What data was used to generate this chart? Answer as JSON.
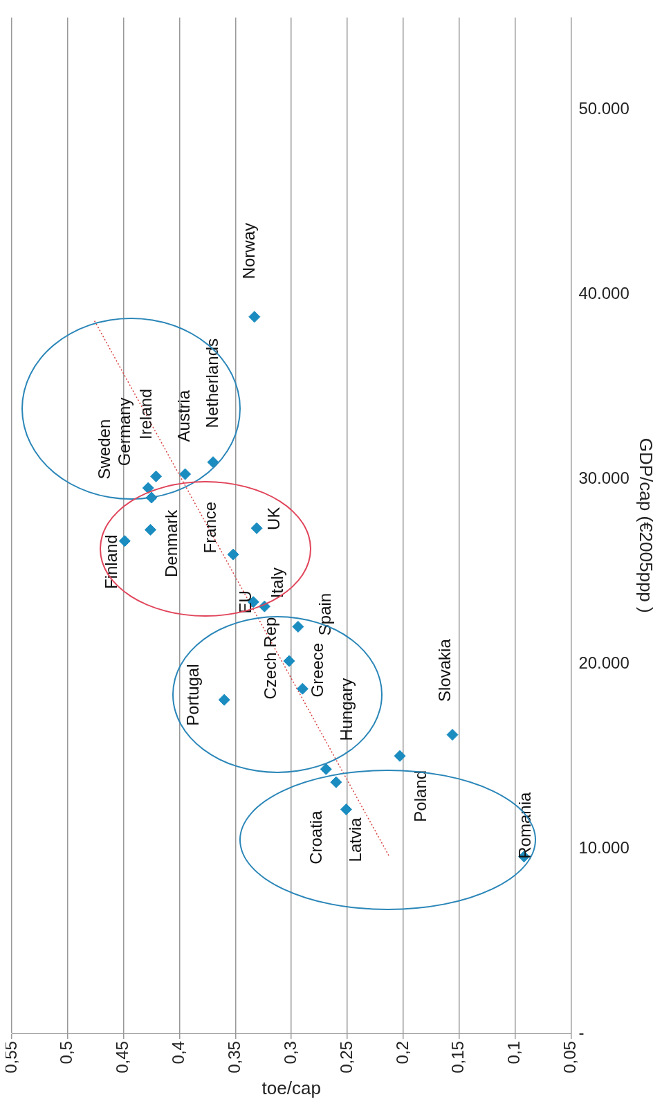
{
  "chart_data": {
    "type": "scatter",
    "xlabel": "toe/cap",
    "ylabel": "GDP/cap (€2005ppp )",
    "xlim": [
      0.55,
      0.05
    ],
    "xticks": [
      {
        "value": 0.05,
        "label": "0,05"
      },
      {
        "value": 0.1,
        "label": "0,1"
      },
      {
        "value": 0.15,
        "label": "0,15"
      },
      {
        "value": 0.2,
        "label": "0,2"
      },
      {
        "value": 0.25,
        "label": "0,25"
      },
      {
        "value": 0.3,
        "label": "0,3"
      },
      {
        "value": 0.35,
        "label": "0,35"
      },
      {
        "value": 0.4,
        "label": "0,4"
      },
      {
        "value": 0.45,
        "label": "0,45"
      },
      {
        "value": 0.5,
        "label": "0,5"
      },
      {
        "value": 0.55,
        "label": "0,55"
      }
    ],
    "ylim": [
      0,
      55000
    ],
    "yticks": [
      {
        "value": 0,
        "label": "-"
      },
      {
        "value": 10000,
        "label": "10.000"
      },
      {
        "value": 20000,
        "label": "20.000"
      },
      {
        "value": 30000,
        "label": "30.000"
      },
      {
        "value": 40000,
        "label": "40.000"
      },
      {
        "value": 50000,
        "label": "50.000"
      }
    ],
    "grid": "x",
    "legend": false,
    "marker": "diamond",
    "series": [
      {
        "color": "#1a8cc0",
        "x": [
          0.333,
          0.37,
          0.395,
          0.421,
          0.425,
          0.428,
          0.426,
          0.449,
          0.331,
          0.352,
          0.334,
          0.324,
          0.294,
          0.302,
          0.29,
          0.36,
          0.269,
          0.26,
          0.251,
          0.203,
          0.156,
          0.092
        ],
        "values": [
          38800,
          30930,
          30280,
          30160,
          29010,
          29530,
          27270,
          26660,
          27350,
          25930,
          23360,
          23120,
          22020,
          20160,
          18660,
          18060,
          14310,
          13600,
          12130,
          15020,
          16170,
          9570
        ]
      },
      {
        "type": "line",
        "marker": "none",
        "color": "#d94040",
        "line_style": "dotted",
        "x": [
          0.476,
          0.212
        ],
        "values": [
          38580,
          9530
        ]
      }
    ],
    "annotations": [
      {
        "text": "Norway",
        "x": 0.333,
        "y": 38800
      },
      {
        "text": "Netherlands",
        "x": 0.37,
        "y": 30930
      },
      {
        "text": "Austria",
        "x": 0.395,
        "y": 30280
      },
      {
        "text": "Ireland",
        "x": 0.421,
        "y": 30160
      },
      {
        "text": "Germany",
        "x": 0.425,
        "y": 29010
      },
      {
        "text": "Sweden",
        "x": 0.428,
        "y": 29530
      },
      {
        "text": "Denmark",
        "x": 0.426,
        "y": 27270
      },
      {
        "text": "Finland",
        "x": 0.449,
        "y": 26660
      },
      {
        "text": "UK",
        "x": 0.331,
        "y": 27350
      },
      {
        "text": "France",
        "x": 0.352,
        "y": 25930
      },
      {
        "text": "EU",
        "x": 0.334,
        "y": 23360
      },
      {
        "text": "Italy",
        "x": 0.324,
        "y": 23120
      },
      {
        "text": "Spain",
        "x": 0.294,
        "y": 22020
      },
      {
        "text": "Czech Rep",
        "x": 0.302,
        "y": 20160
      },
      {
        "text": "Greece",
        "x": 0.29,
        "y": 18660
      },
      {
        "text": "Portugal",
        "x": 0.36,
        "y": 18060
      },
      {
        "text": "Hungary",
        "x": 0.269,
        "y": 14310
      },
      {
        "text": "Croatia",
        "x": 0.26,
        "y": 13600
      },
      {
        "text": "Latvia",
        "x": 0.251,
        "y": 12130
      },
      {
        "text": "Poland",
        "x": 0.203,
        "y": 15020
      },
      {
        "text": "Slovakia",
        "x": 0.156,
        "y": 16170
      },
      {
        "text": "Romania",
        "x": 0.092,
        "y": 9570
      }
    ]
  }
}
